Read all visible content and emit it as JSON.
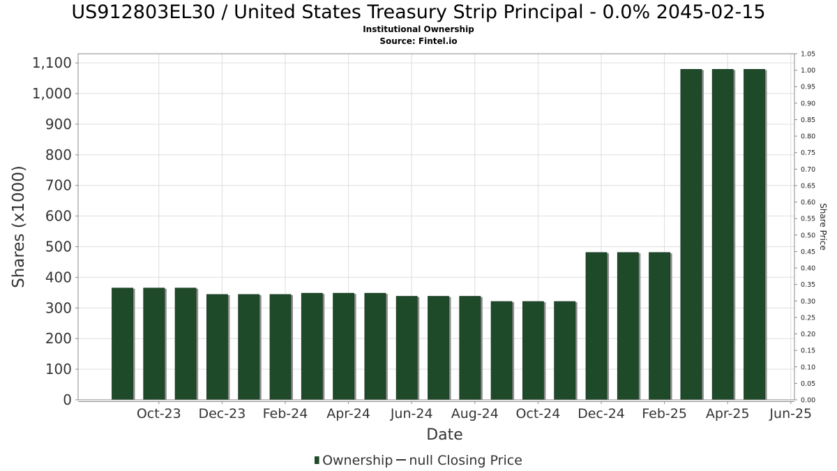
{
  "header": {
    "title": "US912803EL30 / United States Treasury Strip Principal - 0.0% 2045-02-15",
    "subtitle1": "Institutional Ownership",
    "subtitle2": "Source: Fintel.io"
  },
  "legend": {
    "ownership_label": "Ownership",
    "price_label": "null Closing Price"
  },
  "colors": {
    "bar": "#1e4a2a",
    "bar_shadow": "#8c8c8c",
    "grid": "#dddddd",
    "axis": "#888888"
  },
  "chart_data": {
    "type": "bar",
    "title": "US912803EL30 / United States Treasury Strip Principal - 0.0% 2045-02-15",
    "xlabel": "Date",
    "ylabel": "Shares (x1000)",
    "y2label": "Share Price",
    "ylim": [
      0,
      1130
    ],
    "y2lim": [
      0,
      1.05
    ],
    "yticks": [
      0,
      100,
      200,
      300,
      400,
      500,
      600,
      700,
      800,
      900,
      1000,
      1100
    ],
    "ytick_labels": [
      "0",
      "100",
      "200",
      "300",
      "400",
      "500",
      "600",
      "700",
      "800",
      "900",
      "1,000",
      "1,100"
    ],
    "y2ticks": [
      0.0,
      0.05,
      0.1,
      0.15,
      0.2,
      0.25,
      0.3,
      0.35,
      0.4,
      0.45,
      0.5,
      0.55,
      0.6,
      0.65,
      0.7,
      0.75,
      0.8,
      0.85,
      0.9,
      0.95,
      1.0,
      1.05
    ],
    "y2tick_labels": [
      "0.00",
      "0.05",
      "0.10",
      "0.15",
      "0.20",
      "0.25",
      "0.30",
      "0.35",
      "0.40",
      "0.45",
      "0.50",
      "0.55",
      "0.60",
      "0.65",
      "0.70",
      "0.75",
      "0.80",
      "0.85",
      "0.90",
      "0.95",
      "1.00",
      "1.05"
    ],
    "xtick_labels": [
      "Oct-23",
      "Dec-23",
      "Feb-24",
      "Apr-24",
      "Jun-24",
      "Aug-24",
      "Oct-24",
      "Dec-24",
      "Feb-25",
      "Apr-25",
      "Jun-25"
    ],
    "categories": [
      "2023-09",
      "2023-10",
      "2023-11",
      "2023-12",
      "2024-01",
      "2024-02",
      "2024-03",
      "2024-04",
      "2024-05",
      "2024-06",
      "2024-07",
      "2024-08",
      "2024-09",
      "2024-10",
      "2024-11",
      "2024-12",
      "2025-01",
      "2025-02",
      "2025-03",
      "2025-04",
      "2025-05"
    ],
    "series": [
      {
        "name": "Ownership",
        "values": [
          365,
          365,
          365,
          344,
          344,
          344,
          348,
          348,
          348,
          338,
          338,
          338,
          321,
          321,
          321,
          481,
          481,
          481,
          1079,
          1079,
          1079
        ]
      }
    ],
    "grid": true,
    "legend_position": "bottom"
  }
}
